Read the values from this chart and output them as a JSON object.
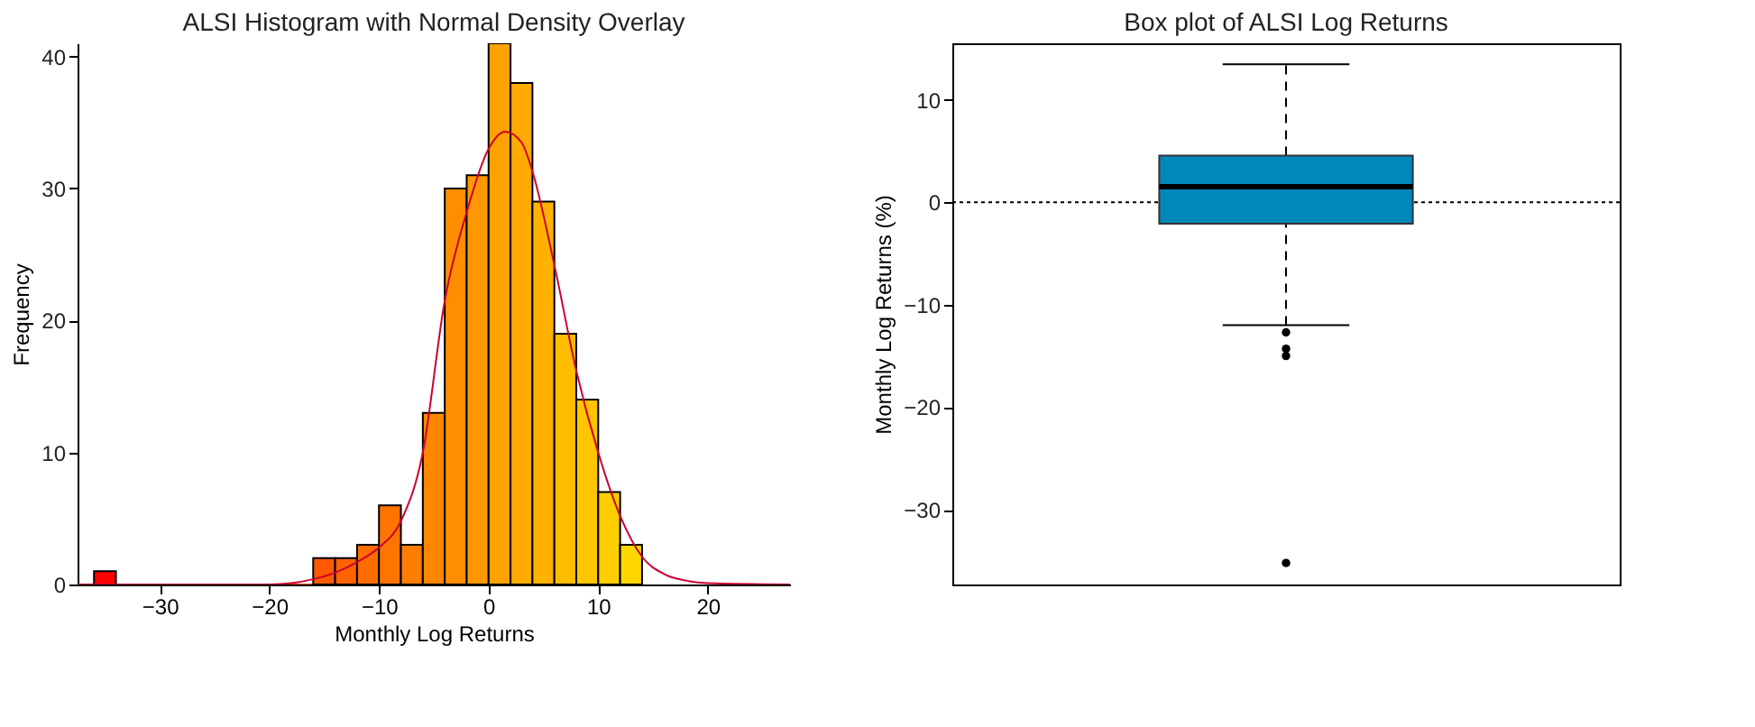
{
  "chart_data": [
    {
      "type": "histogram",
      "title": "ALSI Histogram with Normal Density Overlay",
      "xlabel": "Monthly Log Returns",
      "ylabel": "Frequency",
      "bins": [
        -36,
        -34,
        -32,
        -30,
        -28,
        -26,
        -24,
        -22,
        -20,
        -18,
        -16,
        -14,
        -12,
        -10,
        -8,
        -6,
        -4,
        -2,
        0,
        2,
        4,
        6,
        8,
        10,
        12,
        14
      ],
      "values": [
        1,
        0,
        0,
        0,
        0,
        0,
        0,
        0,
        0,
        0,
        2,
        2,
        3,
        6,
        3,
        13,
        30,
        31,
        41,
        38,
        29,
        19,
        14,
        7,
        3
      ],
      "colors": [
        "#ff0000",
        "#ff0900",
        "#ff1200",
        "#ff1b00",
        "#ff2400",
        "#ff2d00",
        "#ff3600",
        "#ff3f00",
        "#ff4800",
        "#ff5100",
        "#ff5a00",
        "#ff6300",
        "#ff6c00",
        "#ff7400",
        "#ff7d00",
        "#ff8600",
        "#ff8f00",
        "#ff9800",
        "#ffa100",
        "#ffaa00",
        "#ffb300",
        "#ffbc00",
        "#ffc500",
        "#ffce00",
        "#ffd700"
      ],
      "series": [
        {
          "type": "line",
          "color": "#cc0033",
          "x": [
            -37.5,
            -20,
            -18,
            -16,
            -14,
            -12,
            -10,
            -8,
            -6,
            -4,
            -2,
            0,
            1.5,
            3,
            4,
            6,
            8,
            10,
            12,
            14,
            16,
            18,
            20,
            27.5
          ],
          "values": [
            0,
            0,
            0.1,
            0.4,
            0.9,
            1.7,
            2.8,
            4.8,
            10,
            21.5,
            28.2,
            33,
            34.3,
            33.5,
            31.3,
            24.2,
            16.2,
            10,
            5.2,
            2.1,
            0.8,
            0.3,
            0.1,
            0
          ]
        }
      ],
      "xlim": [
        -37.5,
        27.5
      ],
      "xticks": [
        -30,
        -20,
        -10,
        0,
        10,
        20
      ],
      "ylim": [
        0,
        41
      ],
      "yticks": [
        0,
        10,
        20,
        30,
        40
      ],
      "grid": false
    },
    {
      "type": "box",
      "title": "Box plot of ALSI Log Returns",
      "ylabel": "Monthly Log Returns (%)",
      "categories": [
        null
      ],
      "color": "#0088bb",
      "boxes": [
        {
          "low": -12.0,
          "q1": -2.1,
          "median": 1.5,
          "q3": 4.55,
          "high": 13.45,
          "outliers": [
            -12.7,
            -14.3,
            -15.0,
            -35.2
          ]
        }
      ],
      "ylim": [
        -37.3,
        15.5
      ],
      "yticks": [
        -30,
        -20,
        -10,
        0,
        10
      ],
      "ref_lines": [
        {
          "axis": "y",
          "value": 0,
          "line_style": "dotted",
          "color": "#000000"
        }
      ],
      "grid": false
    }
  ]
}
